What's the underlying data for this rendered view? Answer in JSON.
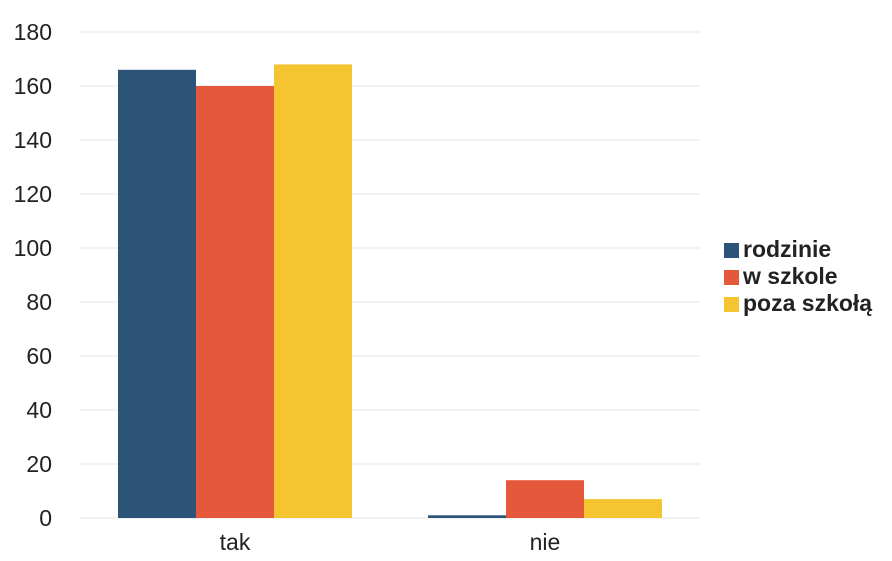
{
  "chart_data": {
    "type": "bar",
    "title": "",
    "xlabel": "",
    "ylabel": "",
    "categories": [
      "tak",
      "nie"
    ],
    "series": [
      {
        "name": "rodzinie",
        "color": "#2c5378",
        "values": [
          166,
          1
        ]
      },
      {
        "name": "w szkole",
        "color": "#e5583b",
        "values": [
          160,
          14
        ]
      },
      {
        "name": "poza szkołą",
        "color": "#f4c531",
        "values": [
          168,
          7
        ]
      }
    ],
    "ylim": [
      0,
      180
    ],
    "yticks": [
      0,
      20,
      40,
      60,
      80,
      100,
      120,
      140,
      160,
      180
    ],
    "grid": true,
    "legend_position": "right"
  }
}
